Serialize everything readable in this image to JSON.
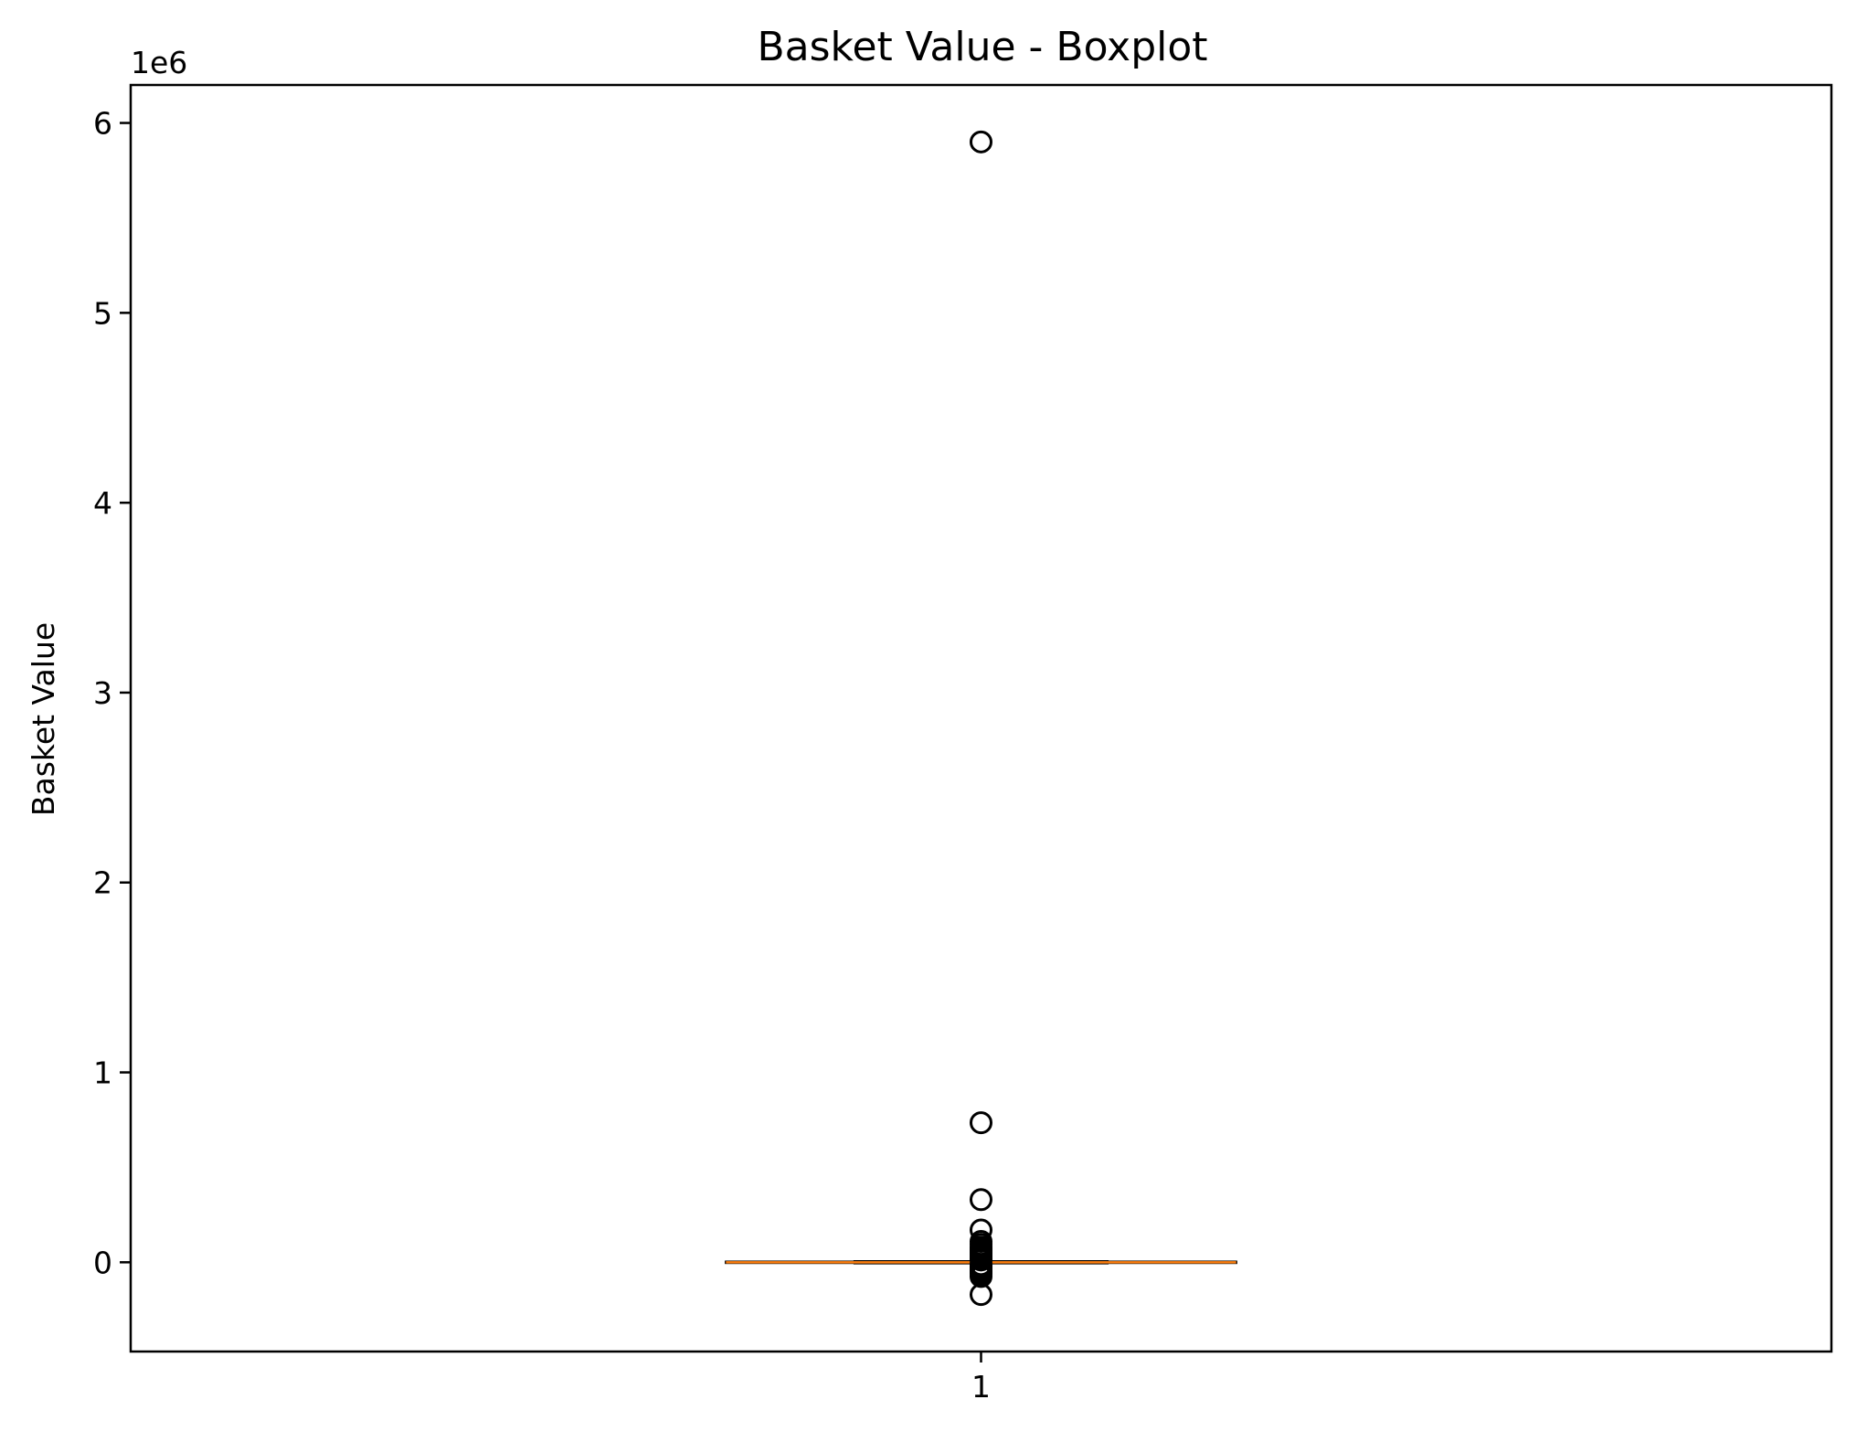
{
  "chart_data": {
    "type": "boxplot",
    "title": "Basket Value - Boxplot",
    "xlabel": "",
    "ylabel": "Basket Value",
    "y_offset_label": "1e6",
    "x_tick_labels": [
      "1"
    ],
    "y_ticks": [
      0,
      1,
      2,
      3,
      4,
      5,
      6
    ],
    "y_scale": 1000000,
    "ylim": [
      -470000,
      6200000
    ],
    "xlim": [
      0.5,
      1.5
    ],
    "grid": false,
    "box_colors": {
      "box": "#000000",
      "median": "#ff7f0e",
      "flier": "#000000"
    },
    "boxes": [
      {
        "position": 1,
        "whisker_low": -5000,
        "q1": -3000,
        "median": 0,
        "q3": 3000,
        "whisker_high": 5000,
        "fliers": [
          5900000,
          735000,
          330000,
          170000,
          110000,
          95000,
          80000,
          70000,
          60000,
          50000,
          40000,
          30000,
          20000,
          12000,
          -12000,
          -20000,
          -30000,
          -40000,
          -50000,
          -60000,
          -75000,
          -170000
        ]
      }
    ]
  }
}
